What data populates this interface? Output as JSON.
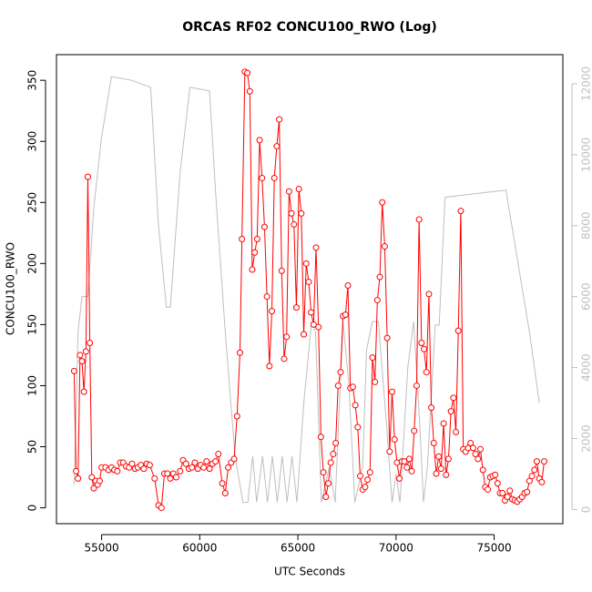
{
  "chart_data": {
    "type": "line",
    "title": "ORCAS RF02 CONCU100_RWO (Log)",
    "xlabel": "UTC Seconds",
    "ylabel": "CONCU100_RWO",
    "xlim": [
      52700,
      78500
    ],
    "xticks": [
      55000,
      60000,
      65000,
      70000,
      75000
    ],
    "ylim": [
      -13,
      371
    ],
    "yticks": [
      0,
      50,
      100,
      150,
      200,
      250,
      300,
      350
    ],
    "y2lim": [
      -400,
      12820
    ],
    "y2ticks": [
      0,
      2000,
      4000,
      6000,
      8000,
      10000,
      12000
    ],
    "series": [
      {
        "color": "#ff0000",
        "marker": "circle",
        "axis": "y",
        "x": [
          53600,
          53700,
          53800,
          53900,
          54000,
          54100,
          54200,
          54300,
          54400,
          54500,
          54600,
          54700,
          54800,
          54900,
          55000,
          55200,
          55350,
          55500,
          55650,
          55800,
          55950,
          56100,
          56250,
          56400,
          56550,
          56700,
          56850,
          57000,
          57150,
          57300,
          57450,
          57700,
          57900,
          58050,
          58200,
          58350,
          58500,
          58650,
          58800,
          59000,
          59150,
          59300,
          59450,
          59600,
          59750,
          59900,
          60050,
          60200,
          60350,
          60500,
          60650,
          60800,
          60950,
          61150,
          61300,
          61450,
          61600,
          61750,
          61900,
          62050,
          62150,
          62300,
          62425,
          62550,
          62675,
          62800,
          62925,
          63050,
          63175,
          63300,
          63425,
          63550,
          63675,
          63800,
          63925,
          64050,
          64175,
          64300,
          64425,
          64550,
          64675,
          64800,
          64925,
          65050,
          65175,
          65300,
          65425,
          65550,
          65675,
          65800,
          65925,
          66050,
          66175,
          66300,
          66425,
          66550,
          66675,
          66800,
          66925,
          67050,
          67175,
          67300,
          67425,
          67550,
          67675,
          67800,
          67925,
          68050,
          68175,
          68300,
          68425,
          68550,
          68675,
          68800,
          68925,
          69050,
          69175,
          69300,
          69425,
          69550,
          69675,
          69800,
          69925,
          70050,
          70175,
          70300,
          70425,
          70550,
          70675,
          70800,
          70925,
          71050,
          71175,
          71300,
          71425,
          71550,
          71675,
          71800,
          71925,
          72050,
          72175,
          72300,
          72425,
          72550,
          72675,
          72800,
          72925,
          73050,
          73175,
          73300,
          73425,
          73550,
          73675,
          73800,
          73925,
          74050,
          74175,
          74300,
          74425,
          74550,
          74675,
          74800,
          74925,
          75050,
          75175,
          75300,
          75425,
          75550,
          75675,
          75800,
          75925,
          76050,
          76175,
          76300,
          76425,
          76550,
          76675,
          76800,
          76925,
          77050,
          77175,
          77300,
          77425,
          77550
        ],
        "values": [
          112,
          30,
          24,
          125,
          120,
          95,
          128,
          271,
          135,
          25,
          16,
          22,
          19,
          22,
          33,
          33,
          31,
          33,
          31,
          30,
          37,
          37,
          34,
          33,
          36,
          32,
          33,
          35,
          32,
          36,
          35,
          24,
          2,
          0,
          28,
          28,
          24,
          28,
          25,
          30,
          39,
          36,
          32,
          33,
          37,
          32,
          35,
          33,
          38,
          32,
          36,
          38,
          44,
          20,
          12,
          33,
          37,
          40,
          75,
          127,
          220,
          357,
          356,
          341,
          195,
          209,
          220,
          301,
          270,
          230,
          173,
          116,
          161,
          270,
          296,
          318,
          194,
          122,
          140,
          259,
          241,
          232,
          164,
          261,
          241,
          142,
          200,
          185,
          160,
          150,
          213,
          148,
          58,
          29,
          9,
          20,
          37,
          44,
          53,
          100,
          111,
          157,
          158,
          182,
          98,
          99,
          84,
          66,
          26,
          15,
          17,
          23,
          29,
          123,
          103,
          170,
          189,
          250,
          214,
          139,
          46,
          95,
          56,
          37,
          24,
          38,
          38,
          33,
          40,
          30,
          63,
          100,
          236,
          135,
          130,
          111,
          175,
          82,
          53,
          28,
          42,
          32,
          69,
          27,
          40,
          79,
          90,
          62,
          145,
          243,
          48,
          46,
          49,
          53,
          49,
          44,
          40,
          48,
          31,
          17,
          15,
          25,
          26,
          27,
          20,
          12,
          12,
          6,
          9,
          14,
          7,
          6,
          5,
          7,
          9,
          12,
          13,
          22,
          26,
          31,
          38,
          24,
          21,
          38
        ]
      },
      {
        "color": "#bebebe",
        "axis": "y2",
        "x": [
          53600,
          53800,
          54000,
          54300,
          54600,
          55000,
          55500,
          56500,
          57500,
          57900,
          58300,
          58500,
          59000,
          59500,
          60500,
          60800,
          61300,
          61800,
          62200,
          62450,
          62700,
          62900,
          63200,
          63450,
          63700,
          63950,
          64200,
          64450,
          64700,
          64950,
          65300,
          65700,
          65900,
          66200,
          66600,
          66900,
          67300,
          67600,
          67900,
          68300,
          68500,
          68800,
          69100,
          69500,
          69800,
          70000,
          70200,
          70600,
          70900,
          71200,
          71400,
          71600,
          72000,
          72200,
          72500,
          74000,
          75600,
          76200,
          76800,
          77300
        ],
        "values": [
          700,
          5000,
          6000,
          6000,
          8500,
          10500,
          12200,
          12100,
          11900,
          8000,
          5700,
          5700,
          9500,
          11900,
          11800,
          9000,
          5000,
          1500,
          200,
          200,
          1500,
          200,
          1500,
          200,
          1500,
          200,
          1500,
          200,
          1500,
          200,
          3000,
          5300,
          5000,
          200,
          1200,
          200,
          5300,
          3500,
          200,
          1200,
          4500,
          5300,
          5300,
          2500,
          200,
          1000,
          200,
          4000,
          5300,
          2500,
          200,
          1200,
          5200,
          5200,
          8800,
          8900,
          9000,
          7000,
          5000,
          3000
        ]
      }
    ]
  }
}
